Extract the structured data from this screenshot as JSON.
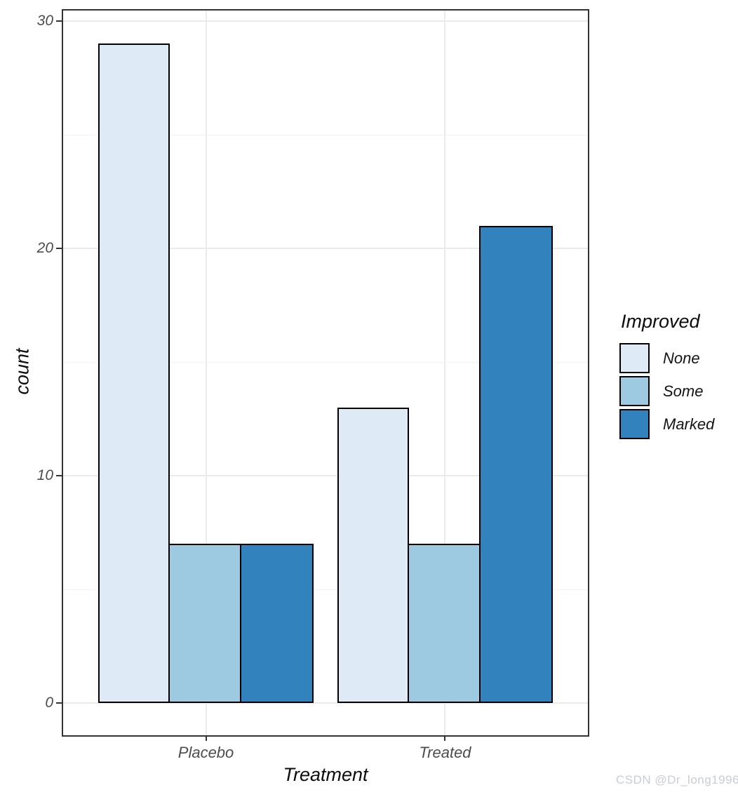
{
  "chart_data": {
    "type": "bar",
    "mode": "grouped",
    "title": "",
    "xlabel": "Treatment",
    "ylabel": "count",
    "categories": [
      "Placebo",
      "Treated"
    ],
    "series": [
      {
        "name": "None",
        "color": "#DEEBF7",
        "values": [
          29,
          13
        ]
      },
      {
        "name": "Some",
        "color": "#9ECAE1",
        "values": [
          7,
          7
        ]
      },
      {
        "name": "Marked",
        "color": "#3182BD",
        "values": [
          7,
          21
        ]
      }
    ],
    "legend_title": "Improved",
    "legend_position": "right",
    "ylim": [
      0,
      30
    ],
    "yticks_major": [
      0,
      10,
      20,
      30
    ],
    "yticks_minor": [
      5,
      15,
      25
    ],
    "grid": "on",
    "panel_border_color": "#333333",
    "bar_outline_color": "#000000",
    "tick_label_color": "#4d4d4d"
  },
  "watermark": "CSDN @Dr_long1996"
}
